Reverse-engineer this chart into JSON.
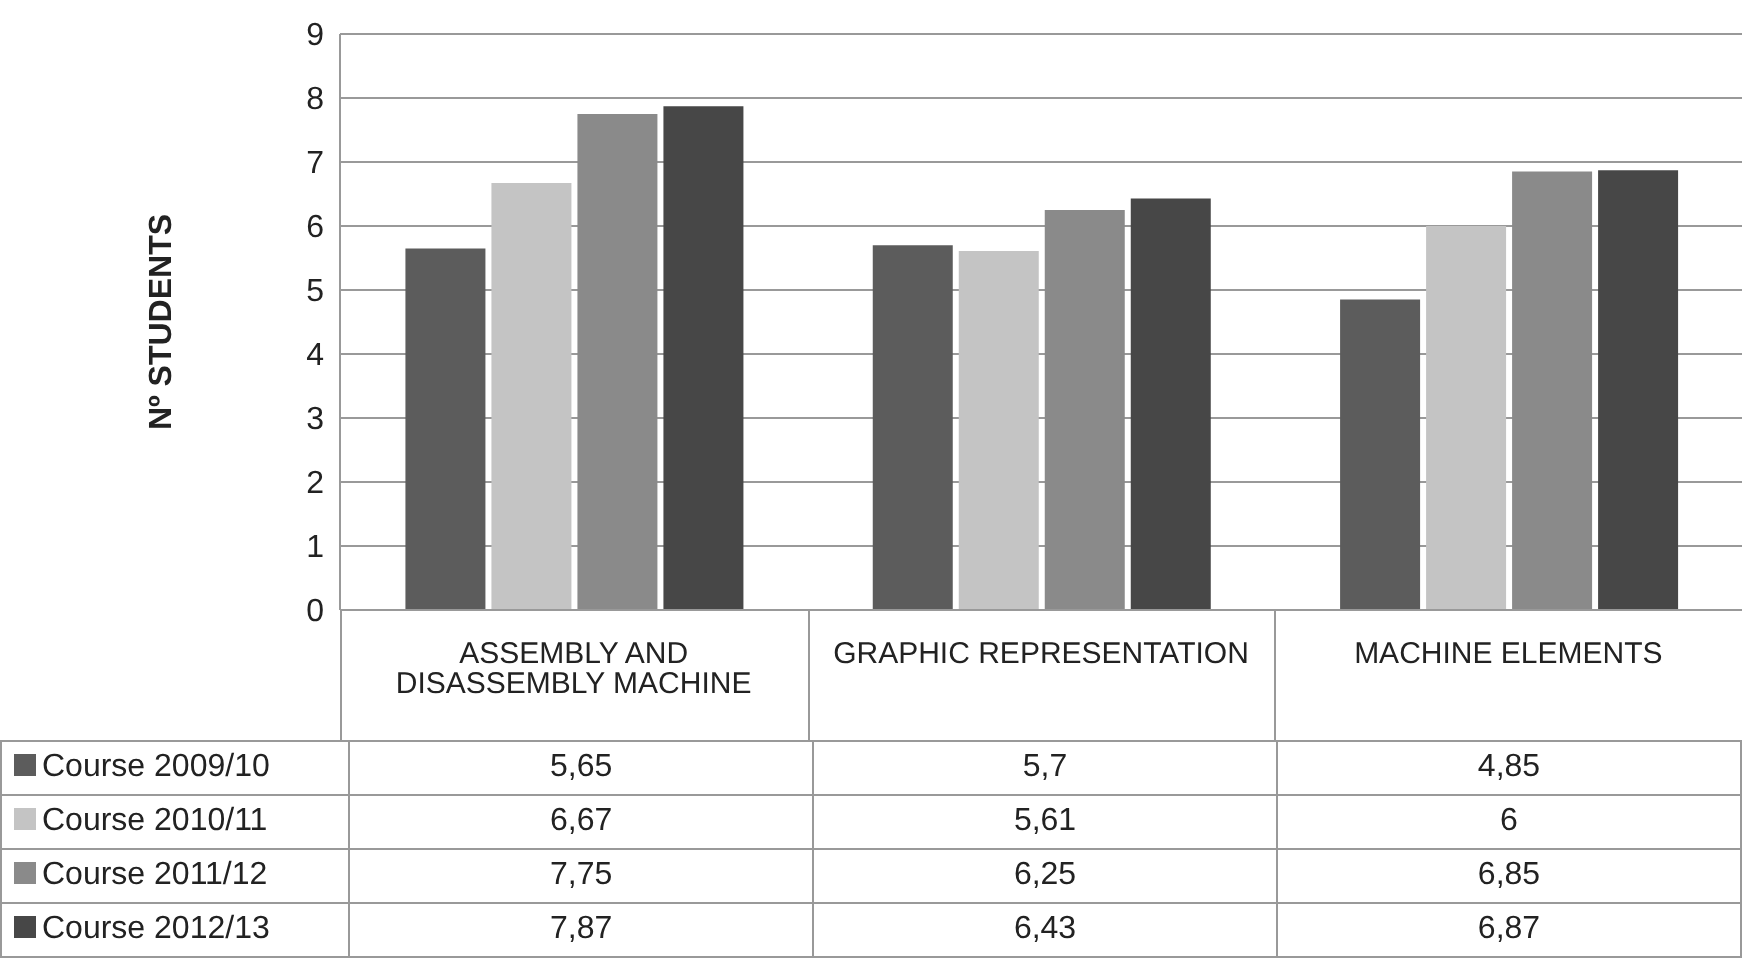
{
  "chart_data": {
    "type": "bar",
    "ylabel": "Nº STUDENTS",
    "categories": [
      "ASSEMBLY AND DISASSEMBLY MACHINE",
      "GRAPHIC REPRESENTATION",
      "MACHINE ELEMENTS"
    ],
    "series": [
      {
        "name": "Course 2009/10",
        "color": "#5c5c5c",
        "values": [
          5.65,
          5.7,
          4.85
        ],
        "value_labels": [
          "5,65",
          "5,7",
          "4,85"
        ]
      },
      {
        "name": "Course 2010/11",
        "color": "#c4c4c4",
        "values": [
          6.67,
          5.61,
          6
        ],
        "value_labels": [
          "6,67",
          "5,61",
          "6"
        ]
      },
      {
        "name": "Course 2011/12",
        "color": "#8a8a8a",
        "values": [
          7.75,
          6.25,
          6.85
        ],
        "value_labels": [
          "7,75",
          "6,25",
          "6,85"
        ]
      },
      {
        "name": "Course 2012/13",
        "color": "#474747",
        "values": [
          7.87,
          6.43,
          6.87
        ],
        "value_labels": [
          "7,87",
          "6,43",
          "6,87"
        ]
      }
    ],
    "ylim": [
      0,
      9
    ],
    "yticks": [
      0,
      1,
      2,
      3,
      4,
      5,
      6,
      7,
      8,
      9
    ],
    "grid": "y",
    "legend": "bottom"
  }
}
